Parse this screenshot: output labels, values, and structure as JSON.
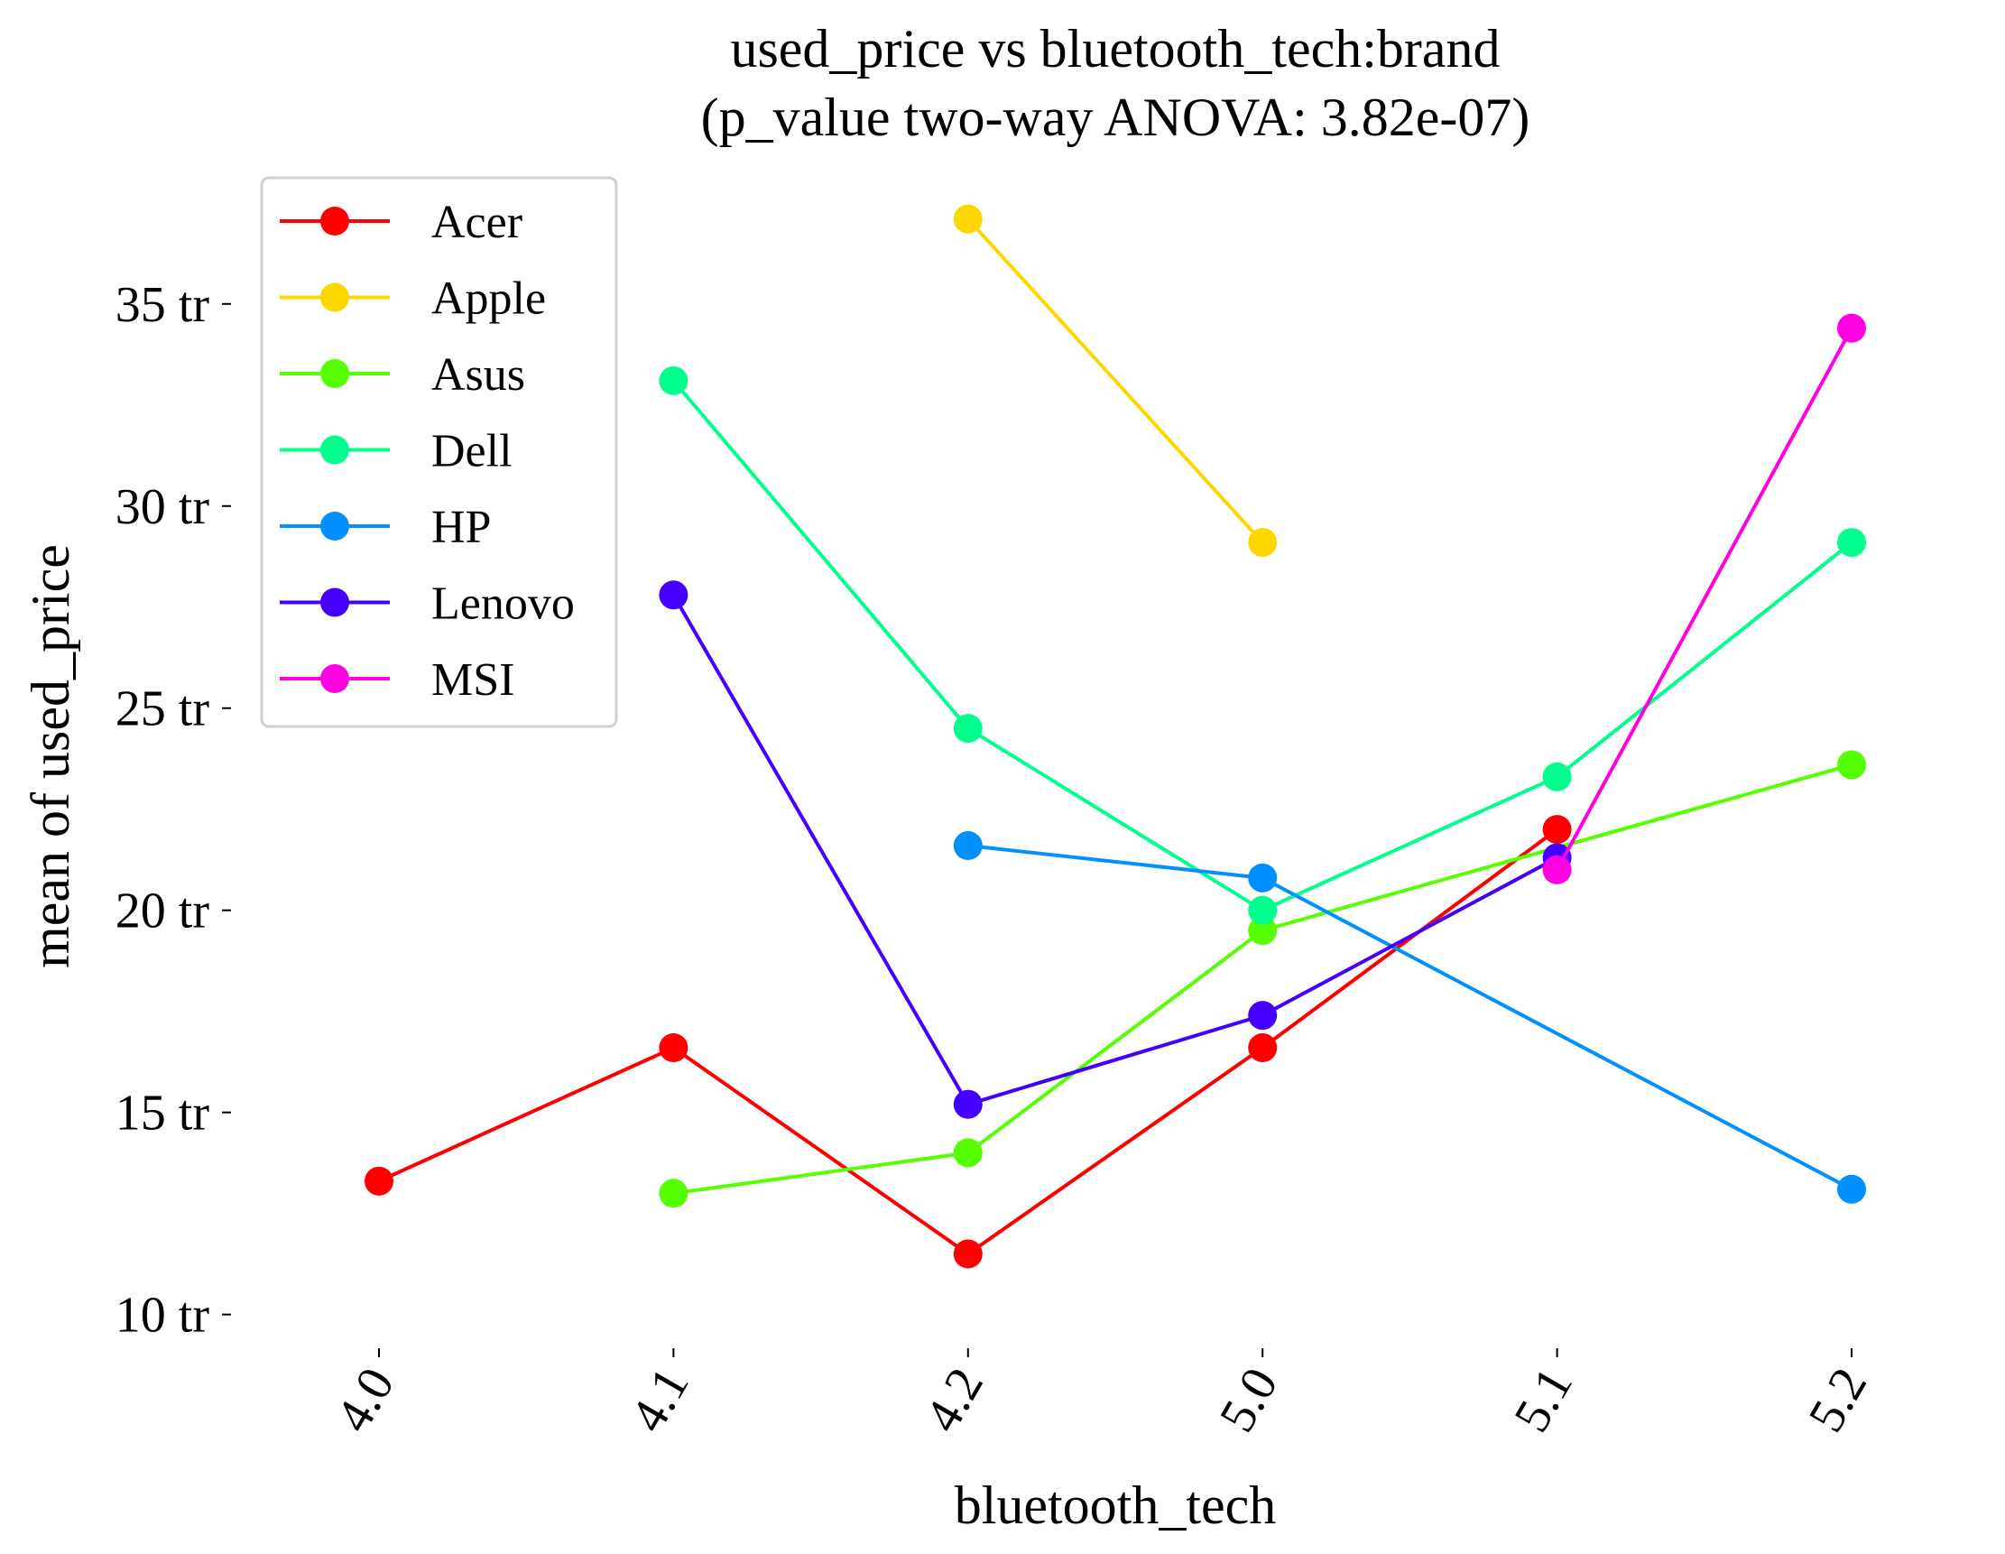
{
  "chart_data": {
    "type": "line",
    "title": "used_price vs bluetooth_tech:brand",
    "subtitle": "(p_value two-way ANOVA: 3.82e-07)",
    "xlabel": "bluetooth_tech",
    "ylabel": "mean of used_price",
    "categories": [
      "4.0",
      "4.1",
      "4.2",
      "5.0",
      "5.1",
      "5.2"
    ],
    "ylim": [
      9.3,
      38.5
    ],
    "yticks": [
      10,
      15,
      20,
      25,
      30,
      35
    ],
    "ytick_labels": [
      "10 tr",
      "15 tr",
      "20 tr",
      "25 tr",
      "30 tr",
      "35 tr"
    ],
    "grid": false,
    "legend_position": "top-left",
    "series": [
      {
        "name": "Acer",
        "color": "#ff0000",
        "values": [
          13.3,
          16.6,
          11.5,
          16.6,
          22.0,
          null
        ]
      },
      {
        "name": "Apple",
        "color": "#ffd700",
        "values": [
          null,
          null,
          37.1,
          29.1,
          null,
          null
        ]
      },
      {
        "name": "Asus",
        "color": "#55ff00",
        "values": [
          null,
          13.0,
          14.0,
          19.5,
          null,
          23.6
        ]
      },
      {
        "name": "Dell",
        "color": "#00ff8c",
        "values": [
          null,
          33.1,
          24.5,
          20.0,
          23.3,
          29.1
        ]
      },
      {
        "name": "HP",
        "color": "#0090ff",
        "values": [
          null,
          null,
          21.6,
          20.8,
          null,
          13.1
        ]
      },
      {
        "name": "Lenovo",
        "color": "#4400ff",
        "values": [
          null,
          27.8,
          15.2,
          17.4,
          21.3,
          null
        ]
      },
      {
        "name": "MSI",
        "color": "#ff00e0",
        "values": [
          null,
          null,
          null,
          null,
          21.0,
          34.4
        ]
      }
    ]
  }
}
